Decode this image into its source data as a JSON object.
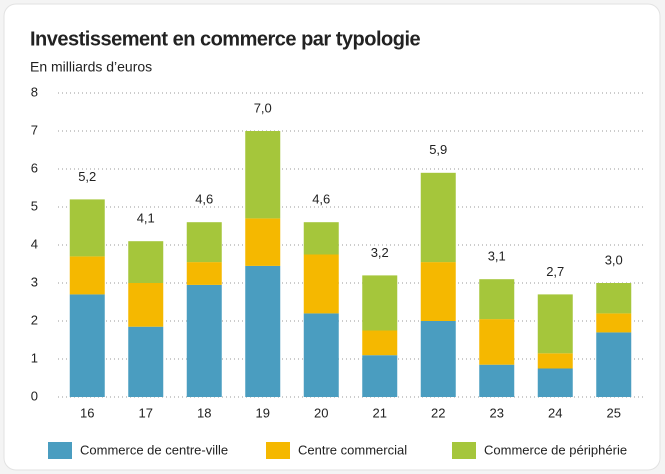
{
  "chart_data": {
    "type": "stacked_bar",
    "title": "Investissement en commerce par typologie",
    "subtitle": "En milliards d’euros",
    "categories": [
      "16",
      "17",
      "18",
      "19",
      "20",
      "21",
      "22",
      "23",
      "24",
      "25"
    ],
    "series": [
      {
        "name": "Commerce de centre-ville",
        "color": "#4a9dc0",
        "values": [
          2.7,
          1.85,
          2.95,
          3.45,
          2.2,
          1.1,
          2.0,
          0.85,
          0.75,
          1.7
        ]
      },
      {
        "name": "Centre commercial",
        "color": "#f5b800",
        "values": [
          1.0,
          1.15,
          0.6,
          1.25,
          1.55,
          0.65,
          1.55,
          1.2,
          0.4,
          0.5
        ]
      },
      {
        "name": "Commerce de périphérie",
        "color": "#a5c63b",
        "values": [
          1.5,
          1.1,
          1.05,
          2.3,
          0.85,
          1.45,
          2.35,
          1.05,
          1.55,
          0.8
        ]
      }
    ],
    "totals": [
      5.2,
      4.1,
      4.6,
      7.0,
      4.6,
      3.2,
      5.9,
      3.1,
      2.7,
      3.0
    ],
    "total_labels": [
      "5,2",
      "4,1",
      "4,6",
      "7,0",
      "4,6",
      "3,2",
      "5,9",
      "3,1",
      "2,7",
      "3,0"
    ],
    "ylim": [
      0,
      8
    ],
    "yticks": [
      0,
      1,
      2,
      3,
      4,
      5,
      6,
      7,
      8
    ],
    "grid": true
  }
}
